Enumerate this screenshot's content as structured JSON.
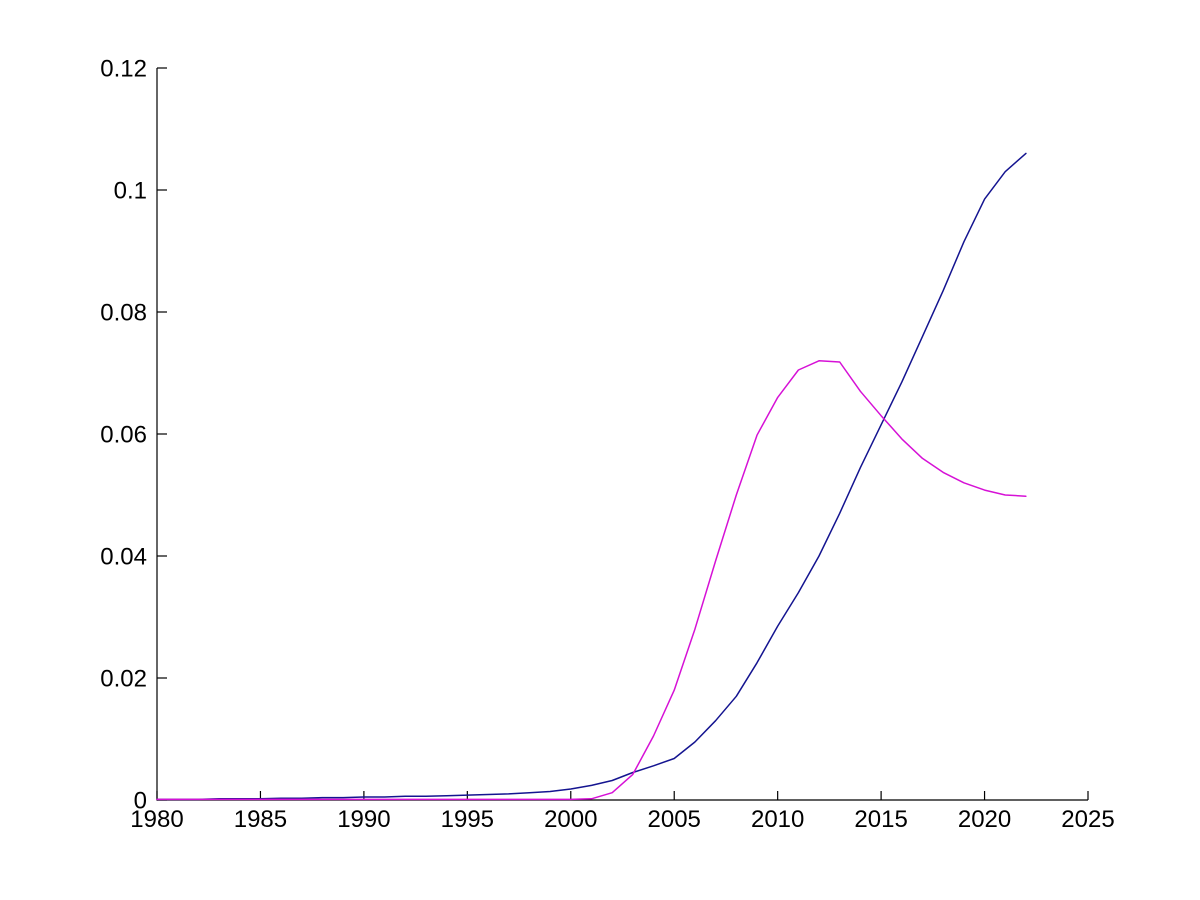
{
  "figure": {
    "background_color": "#ffffff"
  },
  "chart_data": {
    "type": "line",
    "title": "",
    "xlabel": "",
    "ylabel": "",
    "grid": false,
    "legend": null,
    "axis_color": "#000000",
    "xlim": [
      1980,
      2025
    ],
    "ylim": [
      0,
      0.12
    ],
    "x_ticks": [
      1980,
      1985,
      1990,
      1995,
      2000,
      2005,
      2010,
      2015,
      2020,
      2025
    ],
    "x_tick_labels": [
      "1980",
      "1985",
      "1990",
      "1995",
      "2000",
      "2005",
      "2010",
      "2015",
      "2020",
      "2025"
    ],
    "y_ticks": [
      0,
      0.02,
      0.04,
      0.06,
      0.08,
      0.1,
      0.12
    ],
    "y_tick_labels": [
      "0",
      "0.02",
      "0.04",
      "0.06",
      "0.08",
      "0.1",
      "0.12"
    ],
    "x": [
      1980,
      1981,
      1982,
      1983,
      1984,
      1985,
      1986,
      1987,
      1988,
      1989,
      1990,
      1991,
      1992,
      1993,
      1994,
      1995,
      1996,
      1997,
      1998,
      1999,
      2000,
      2001,
      2002,
      2003,
      2004,
      2005,
      2006,
      2007,
      2008,
      2009,
      2010,
      2011,
      2012,
      2013,
      2014,
      2015,
      2016,
      2017,
      2018,
      2019,
      2020,
      2021,
      2022
    ],
    "series": [
      {
        "name": "series-dark-blue-rising",
        "color": "#141490",
        "values": [
          0.0001,
          0.0001,
          0.0001,
          0.0002,
          0.0002,
          0.0002,
          0.0003,
          0.0003,
          0.0004,
          0.0004,
          0.0005,
          0.0005,
          0.0006,
          0.0006,
          0.0007,
          0.0008,
          0.0009,
          0.001,
          0.0012,
          0.0014,
          0.0018,
          0.0024,
          0.0032,
          0.0045,
          0.0056,
          0.0068,
          0.0095,
          0.013,
          0.017,
          0.0225,
          0.0285,
          0.034,
          0.04,
          0.047,
          0.0545,
          0.0615,
          0.0685,
          0.076,
          0.0835,
          0.0915,
          0.0985,
          0.103,
          0.106
        ]
      },
      {
        "name": "series-magenta-peaked",
        "color": "#D611D6",
        "values": [
          0.0001,
          0.0001,
          0.0001,
          0.0001,
          0.0001,
          0.0001,
          0.0001,
          0.0001,
          0.0001,
          0.0001,
          0.0001,
          0.0001,
          0.0001,
          0.0001,
          0.0001,
          0.0001,
          0.0001,
          0.0001,
          0.0001,
          0.0001,
          0.0001,
          0.0002,
          0.0012,
          0.0042,
          0.0105,
          0.018,
          0.028,
          0.0392,
          0.05,
          0.0598,
          0.066,
          0.0705,
          0.072,
          0.0718,
          0.067,
          0.063,
          0.0592,
          0.056,
          0.0537,
          0.052,
          0.0508,
          0.05,
          0.0498
        ]
      }
    ]
  }
}
